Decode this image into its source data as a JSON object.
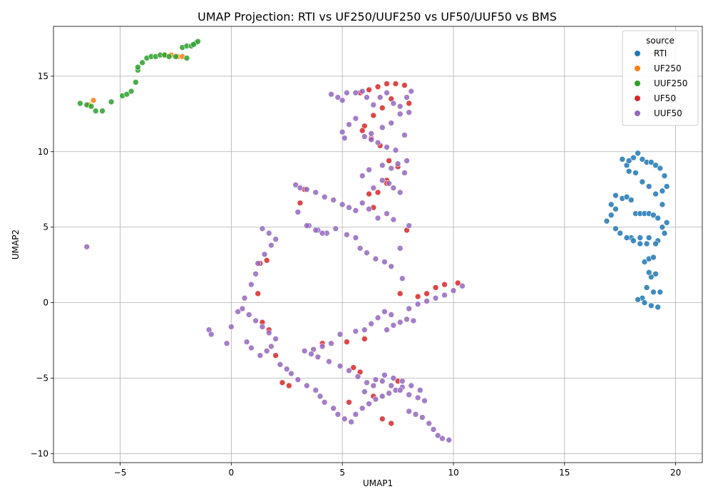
{
  "chart_data": {
    "type": "scatter",
    "title": "UMAP Projection: RTI vs UF250/UUF250 vs UF50/UUF50 vs BMS",
    "xlabel": "UMAP1",
    "ylabel": "UMAP2",
    "xlim": [
      -8,
      21.2
    ],
    "ylim": [
      -10.6,
      18.3
    ],
    "xticks": [
      -5,
      0,
      5,
      10,
      15,
      20
    ],
    "yticks": [
      -10,
      -5,
      0,
      5,
      10,
      15
    ],
    "tick_labels_x": [
      "−5",
      "0",
      "5",
      "10",
      "15",
      "20"
    ],
    "tick_labels_y": [
      "−10",
      "−5",
      "0",
      "5",
      "10",
      "15"
    ],
    "grid": true,
    "legend": {
      "title": "source",
      "placement": "top-right"
    },
    "series": [
      {
        "name": "RTI",
        "color": "#1f77b4",
        "x": [
          16.9,
          17.1,
          17.3,
          17.6,
          17.8,
          18.0,
          18.2,
          18.4,
          18.6,
          18.8,
          19.0,
          19.2,
          19.4,
          19.6,
          17.8,
          17.9,
          18.1,
          18.3,
          18.5,
          18.7,
          18.9,
          19.1,
          19.3,
          19.5,
          19.6,
          19.4,
          19.1,
          18.8,
          18.5,
          18.2,
          17.9,
          17.6,
          17.3,
          17.1,
          18.0,
          18.4,
          18.8,
          19.2,
          19.5,
          19.4,
          19.1,
          18.7,
          18.4,
          18.1,
          17.8,
          17.5,
          17.3,
          18.6,
          18.8,
          19.0,
          19.1,
          18.9,
          18.7,
          18.5,
          18.3,
          18.6,
          18.9,
          19.2,
          19.3,
          19.0,
          18.8
        ],
        "y": [
          5.4,
          5.8,
          6.2,
          6.9,
          7.0,
          6.8,
          5.9,
          5.9,
          5.9,
          5.9,
          5.8,
          5.6,
          5.0,
          5.3,
          9.1,
          9.4,
          9.6,
          9.9,
          9.5,
          9.3,
          9.3,
          9.1,
          8.9,
          8.4,
          7.7,
          7.4,
          7.2,
          7.7,
          8.0,
          8.6,
          8.7,
          9.5,
          7.1,
          6.5,
          4.3,
          4.3,
          4.3,
          4.1,
          4.6,
          6.5,
          3.9,
          3.9,
          3.9,
          4.1,
          4.3,
          4.6,
          4.9,
          2.7,
          2.9,
          3.0,
          1.9,
          1.7,
          1.0,
          0.3,
          0.2,
          0.0,
          -0.2,
          -0.3,
          0.7,
          0.7,
          2.0
        ]
      },
      {
        "name": "UF250",
        "color": "#ff7f0e",
        "x": [
          -6.4,
          -6.2,
          -3.0,
          -2.7,
          -2.4,
          -2.2
        ],
        "y": [
          13.1,
          13.4,
          16.4,
          16.4,
          16.3,
          16.3
        ]
      },
      {
        "name": "UUF250",
        "color": "#2ca02c",
        "x": [
          -6.8,
          -6.5,
          -6.3,
          -6.1,
          -5.8,
          -5.4,
          -4.9,
          -4.7,
          -4.5,
          -4.3,
          -4.2,
          -4.2,
          -4.0,
          -3.8,
          -3.6,
          -3.4,
          -3.2,
          -3.0,
          -2.8,
          -2.5,
          -2.2,
          -2.0,
          -1.8,
          -1.6,
          -1.5,
          -1.7,
          -2.0
        ],
        "y": [
          13.2,
          13.1,
          13.0,
          12.7,
          12.7,
          13.3,
          13.7,
          13.8,
          14.0,
          14.6,
          15.4,
          15.6,
          15.9,
          16.2,
          16.3,
          16.3,
          16.4,
          16.4,
          16.3,
          16.3,
          16.9,
          17.0,
          17.0,
          17.2,
          17.3,
          17.1,
          16.2
        ]
      },
      {
        "name": "UF50",
        "color": "#d62728",
        "x": [
          5.8,
          6.2,
          6.6,
          7.0,
          7.4,
          7.8,
          8.0,
          7.2,
          6.8,
          6.4,
          6.0,
          5.9,
          6.3,
          6.7,
          7.1,
          7.5,
          7.0,
          6.6,
          6.2,
          1.3,
          1.6,
          1.2,
          1.4,
          1.7,
          2.0,
          2.3,
          2.6,
          3.1,
          3.3,
          4.1,
          5.2,
          5.5,
          5.8,
          6.0,
          6.4,
          6.8,
          7.2,
          7.5,
          7.9,
          8.4,
          8.8,
          9.2,
          9.6,
          10.2,
          6.4,
          7.0,
          7.6,
          5.3
        ],
        "y": [
          13.9,
          14.1,
          14.3,
          14.5,
          14.5,
          14.4,
          13.2,
          13.5,
          12.9,
          12.4,
          11.7,
          11.4,
          10.9,
          10.4,
          9.4,
          9.0,
          8.1,
          7.3,
          7.2,
          2.6,
          2.8,
          0.6,
          -1.3,
          -1.8,
          -3.5,
          -5.3,
          -5.5,
          6.6,
          7.5,
          -2.7,
          -2.6,
          -4.3,
          -4.6,
          -2.4,
          -6.2,
          -7.7,
          -8.0,
          -5.2,
          4.8,
          0.4,
          0.6,
          1.0,
          1.2,
          1.3,
          6.3,
          7.9,
          0.6,
          -6.6
        ]
      },
      {
        "name": "UUF50",
        "color": "#9467bd",
        "x": [
          -6.5,
          4.5,
          4.8,
          5.0,
          5.2,
          5.6,
          5.9,
          6.1,
          6.4,
          6.7,
          7.0,
          7.3,
          7.6,
          7.9,
          8.1,
          8.0,
          7.6,
          7.2,
          6.8,
          6.3,
          6.0,
          5.6,
          5.3,
          5.0,
          5.1,
          6.3,
          6.6,
          7.0,
          7.4,
          7.8,
          7.9,
          7.5,
          7.2,
          6.8,
          6.2,
          5.9,
          6.4,
          6.8,
          7.1,
          7.3,
          7.6,
          7.8,
          8.0,
          2.9,
          3.1,
          3.4,
          3.8,
          4.2,
          4.6,
          5.0,
          5.3,
          5.6,
          5.9,
          6.2,
          6.6,
          7.0,
          7.3,
          3.0,
          3.5,
          3.9,
          4.3,
          4.7,
          5.2,
          5.6,
          5.8,
          6.1,
          6.5,
          6.9,
          7.2,
          7.6,
          7.7,
          3.4,
          3.8,
          4.1,
          1.4,
          1.7,
          2.0,
          1.8,
          1.5,
          1.2,
          1.1,
          0.9,
          0.6,
          0.3,
          0.0,
          -0.2,
          0.5,
          0.8,
          1.1,
          1.4,
          1.7,
          2.0,
          1.8,
          1.6,
          1.3,
          0.9,
          0.7,
          -1.0,
          -0.9,
          2.2,
          2.5,
          2.7,
          3.0,
          3.4,
          3.8,
          4.0,
          4.2,
          4.6,
          4.8,
          5.1,
          5.4,
          5.6,
          5.9,
          6.2,
          6.5,
          6.8,
          7.1,
          7.4,
          7.7,
          8.0,
          8.3,
          8.6,
          8.9,
          9.1,
          9.3,
          9.5,
          9.8,
          8.0,
          8.4,
          8.8,
          9.2,
          9.6,
          10.0,
          10.4,
          8.2,
          7.9,
          7.6,
          7.3,
          7.0,
          7.2,
          6.9,
          6.6,
          6.3,
          6.0,
          5.6,
          4.9,
          4.5,
          4.1,
          3.7,
          6.0,
          6.4,
          6.8,
          7.2,
          7.6,
          8.0,
          8.4,
          8.7,
          3.3,
          3.6,
          3.9,
          4.4,
          4.9,
          5.3,
          5.7,
          6.1,
          6.5,
          6.9,
          7.3,
          7.7,
          8.1,
          8.5
        ],
        "y": [
          3.7,
          13.8,
          13.6,
          13.4,
          13.9,
          13.9,
          14.0,
          13.6,
          13.1,
          13.6,
          13.9,
          13.2,
          13.0,
          13.6,
          14.0,
          12.6,
          12.5,
          11.9,
          11.6,
          11.2,
          11.0,
          12.2,
          11.8,
          11.3,
          10.9,
          10.8,
          10.6,
          10.3,
          10.1,
          11.1,
          9.4,
          9.2,
          8.9,
          9.1,
          8.8,
          8.4,
          7.6,
          8.1,
          7.9,
          7.6,
          7.3,
          8.6,
          5.1,
          7.8,
          7.6,
          7.5,
          7.3,
          7.0,
          6.8,
          6.5,
          6.3,
          6.1,
          6.6,
          6.2,
          5.6,
          5.9,
          5.5,
          6.0,
          5.1,
          4.8,
          4.6,
          4.9,
          4.5,
          4.3,
          3.6,
          3.3,
          2.9,
          2.7,
          2.4,
          3.6,
          1.6,
          5.1,
          4.8,
          4.6,
          4.9,
          4.6,
          4.2,
          3.8,
          3.2,
          2.6,
          1.9,
          1.2,
          0.3,
          -0.6,
          -1.6,
          -2.7,
          -0.4,
          -0.8,
          -1.2,
          -1.6,
          -2.0,
          -2.4,
          -2.9,
          -3.2,
          -3.5,
          -3.0,
          -2.6,
          -1.8,
          -2.1,
          -4.1,
          -4.4,
          -4.7,
          -5.1,
          -5.5,
          -5.8,
          -6.2,
          -6.6,
          -7.0,
          -7.4,
          -7.7,
          -7.9,
          -7.4,
          -7.0,
          -6.7,
          -6.4,
          -6.2,
          -6.0,
          -5.8,
          -5.6,
          -7.2,
          -7.4,
          -7.6,
          -8.0,
          -8.4,
          -8.8,
          -9.0,
          -9.1,
          -0.4,
          -0.1,
          0.1,
          0.3,
          0.5,
          0.8,
          1.1,
          -1.2,
          -1.1,
          -1.3,
          -1.5,
          -1.8,
          -0.8,
          -0.6,
          -1.0,
          -1.4,
          -1.8,
          -1.9,
          -2.1,
          -2.7,
          -2.9,
          -3.1,
          -5.9,
          -5.5,
          -5.2,
          -5.5,
          -5.8,
          -6.1,
          -6.3,
          -6.5,
          -3.2,
          -3.4,
          -3.6,
          -3.9,
          -4.2,
          -4.5,
          -4.9,
          -5.3,
          -5.1,
          -4.8,
          -5.0,
          -5.2,
          -5.5,
          -5.8
        ]
      }
    ]
  }
}
